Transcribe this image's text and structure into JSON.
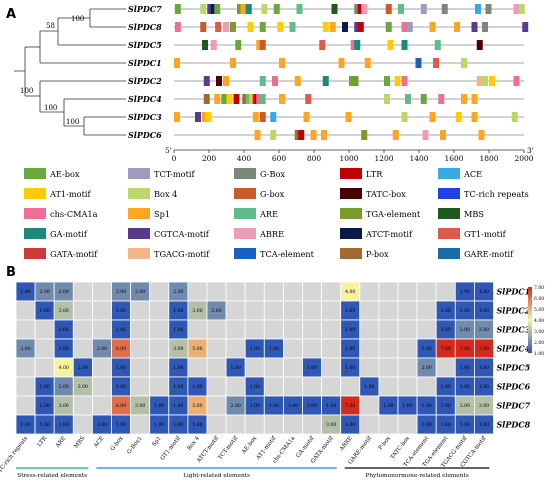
{
  "panel_a": {
    "label": "A",
    "genes": [
      "SlPDC7",
      "SlPDC8",
      "SlPDC5",
      "SlPDC1",
      "SlPDC2",
      "SlPDC4",
      "SlPDC3",
      "SlPDC6"
    ],
    "bootstrap": [
      "58",
      "100",
      "100",
      "100",
      "100"
    ],
    "axis_ticks": [
      "0",
      "200",
      "400",
      "600",
      "800",
      "1000",
      "1200",
      "1400",
      "1600",
      "1800",
      "2000"
    ],
    "axis_5": "5'",
    "axis_3": "3'",
    "tracks": [
      [
        [
          5,
          "c0"
        ],
        [
          150,
          "c6"
        ],
        [
          190,
          "c16"
        ],
        [
          210,
          "c18"
        ],
        [
          230,
          "c0"
        ],
        [
          360,
          "c13"
        ],
        [
          380,
          "c11"
        ],
        [
          410,
          "c15"
        ],
        [
          500,
          "c6"
        ],
        [
          570,
          "c0"
        ],
        [
          700,
          "c12"
        ],
        [
          900,
          "c14"
        ],
        [
          1030,
          "c2"
        ],
        [
          1050,
          "c3"
        ],
        [
          1070,
          "c17"
        ],
        [
          1210,
          "c7"
        ],
        [
          1280,
          "c12"
        ],
        [
          1410,
          "c1"
        ],
        [
          1530,
          "c2"
        ],
        [
          1720,
          "c4"
        ],
        [
          1780,
          "c2"
        ],
        [
          1940,
          "c17"
        ],
        [
          1970,
          "c6"
        ]
      ],
      [
        [
          5,
          "c10"
        ],
        [
          150,
          "c7"
        ],
        [
          235,
          "c19"
        ],
        [
          280,
          "c17"
        ],
        [
          320,
          "c13"
        ],
        [
          420,
          "c5"
        ],
        [
          490,
          "c0"
        ],
        [
          590,
          "c5"
        ],
        [
          660,
          "c12"
        ],
        [
          850,
          "c5"
        ],
        [
          890,
          "c11"
        ],
        [
          960,
          "c18"
        ],
        [
          1030,
          "c16"
        ],
        [
          1050,
          "c3"
        ],
        [
          1210,
          "c0"
        ],
        [
          1300,
          "c10"
        ],
        [
          1330,
          "c1"
        ],
        [
          1460,
          "c11"
        ],
        [
          1600,
          "c11"
        ],
        [
          1700,
          "c16"
        ],
        [
          1760,
          "c2"
        ],
        [
          1990,
          "c16"
        ]
      ],
      [
        [
          160,
          "c14"
        ],
        [
          210,
          "c17"
        ],
        [
          350,
          "c0"
        ],
        [
          470,
          "c11"
        ],
        [
          490,
          "c7"
        ],
        [
          830,
          "c19"
        ],
        [
          1010,
          "c10"
        ],
        [
          1030,
          "c15"
        ],
        [
          1220,
          "c5"
        ],
        [
          1300,
          "c15"
        ],
        [
          1490,
          "c12"
        ],
        [
          1730,
          "c8"
        ]
      ],
      [
        [
          0,
          "c11"
        ],
        [
          320,
          "c11"
        ],
        [
          600,
          "c11"
        ],
        [
          940,
          "c11"
        ],
        [
          1090,
          "c11"
        ],
        [
          1380,
          "c22"
        ],
        [
          1480,
          "c19"
        ],
        [
          1640,
          "c6"
        ]
      ],
      [
        [
          170,
          "c16"
        ],
        [
          240,
          "c8"
        ],
        [
          280,
          "c11"
        ],
        [
          490,
          "c12"
        ],
        [
          560,
          "c10"
        ],
        [
          690,
          "c11"
        ],
        [
          850,
          "c15"
        ],
        [
          1000,
          "c0"
        ],
        [
          1020,
          "c13"
        ],
        [
          1200,
          "c0"
        ],
        [
          1260,
          "c5"
        ],
        [
          1300,
          "c10"
        ],
        [
          1730,
          "c21"
        ],
        [
          1760,
          "c6"
        ],
        [
          1800,
          "c5"
        ],
        [
          1940,
          "c10"
        ]
      ],
      [
        [
          170,
          "c23"
        ],
        [
          230,
          "c11"
        ],
        [
          270,
          "c0"
        ],
        [
          300,
          "c5"
        ],
        [
          340,
          "c3"
        ],
        [
          390,
          "c23"
        ],
        [
          410,
          "c12"
        ],
        [
          430,
          "c5"
        ],
        [
          450,
          "c3"
        ],
        [
          470,
          "c10"
        ],
        [
          490,
          "c12"
        ],
        [
          600,
          "c11"
        ],
        [
          750,
          "c19"
        ],
        [
          1200,
          "c6"
        ],
        [
          1320,
          "c12"
        ],
        [
          1410,
          "c0"
        ],
        [
          1510,
          "c10"
        ],
        [
          1640,
          "c11"
        ],
        [
          1700,
          "c11"
        ]
      ],
      [
        [
          0,
          "c11"
        ],
        [
          120,
          "c16"
        ],
        [
          160,
          "c11"
        ],
        [
          180,
          "c5"
        ],
        [
          450,
          "c11"
        ],
        [
          490,
          "c7"
        ],
        [
          550,
          "c4"
        ],
        [
          740,
          "c11"
        ],
        [
          980,
          "c11"
        ],
        [
          1300,
          "c6"
        ],
        [
          1460,
          "c11"
        ],
        [
          1610,
          "c5"
        ],
        [
          1700,
          "c11"
        ],
        [
          1930,
          "c6"
        ]
      ],
      [
        [
          460,
          "c11"
        ],
        [
          550,
          "c6"
        ],
        [
          690,
          "c23"
        ],
        [
          710,
          "c3"
        ],
        [
          780,
          "c11"
        ],
        [
          840,
          "c11"
        ],
        [
          1070,
          "c13"
        ],
        [
          1250,
          "c11"
        ],
        [
          1420,
          "c17"
        ],
        [
          1520,
          "c11"
        ],
        [
          1740,
          "c11"
        ]
      ]
    ],
    "legend": [
      [
        "c0",
        "AE-box"
      ],
      [
        "c1",
        "TCT-motif"
      ],
      [
        "c2",
        "G-Box"
      ],
      [
        "c3",
        "LTR"
      ],
      [
        "c4",
        "ACE"
      ],
      [
        "c5",
        "AT1-motif"
      ],
      [
        "c6",
        "Box 4"
      ],
      [
        "c7",
        "G-box"
      ],
      [
        "c8",
        "TATC-box"
      ],
      [
        "c9",
        "TC-rich repeats"
      ],
      [
        "c10",
        "chs-CMA1a"
      ],
      [
        "c11",
        "Sp1"
      ],
      [
        "c12",
        "ARE"
      ],
      [
        "c13",
        "TGA-element"
      ],
      [
        "c14",
        "MBS"
      ],
      [
        "c15",
        "GA-motif"
      ],
      [
        "c16",
        "CGTCA-motif"
      ],
      [
        "c17",
        "ABRE"
      ],
      [
        "c18",
        "ATCT-motif"
      ],
      [
        "c19",
        "GT1-motif"
      ],
      [
        "c20",
        "GATA-motif"
      ],
      [
        "c21",
        "TGACG-motif"
      ],
      [
        "c22",
        "TCA-element"
      ],
      [
        "c23",
        "P-box"
      ],
      [
        "c24",
        "GARE-motif"
      ]
    ]
  },
  "panel_b": {
    "label": "B",
    "colorbar": [
      "7.00",
      "6.00",
      "5.00",
      "4.00",
      "3.00",
      "2.00",
      "1.00"
    ],
    "groups": [
      "Stress-related elements",
      "Light-related elements",
      "Phytomonormone-related elements"
    ],
    "chart_data": {
      "type": "heatmap",
      "x": [
        "TC-rich repeats",
        "LTR",
        "ARE",
        "MBS",
        "ACE",
        "G-box",
        "G-Box1",
        "Sp1",
        "GT1-motif",
        "Box 4",
        "ATCT-motif",
        "TCT-motif",
        "AE-box",
        "AT1-motif",
        "chs-CMA1a",
        "GA-motif",
        "GATA-motif",
        "ABRE",
        "GARE-motif",
        "P-box",
        "TATC-box",
        "TCA-element",
        "TGA-element",
        "TGACG-motif",
        "CGTCA-motif"
      ],
      "y": [
        "SlPDC1",
        "SlPDC2",
        "SlPDC3",
        "SlPDC4",
        "SlPDC5",
        "SlPDC6",
        "SlPDC7",
        "SlPDC8"
      ],
      "values": [
        [
          1,
          2,
          2,
          0,
          0,
          2,
          2,
          0,
          2,
          0,
          0,
          0,
          0,
          0,
          0,
          0,
          0,
          4,
          0,
          0,
          0,
          0,
          0,
          1,
          1
        ],
        [
          0,
          1,
          3,
          0,
          0,
          1,
          0,
          0,
          1,
          3,
          2,
          0,
          0,
          0,
          0,
          0,
          0,
          1,
          0,
          0,
          0,
          0,
          1,
          1,
          1
        ],
        [
          0,
          0,
          1,
          0,
          0,
          1,
          0,
          0,
          1,
          0,
          0,
          0,
          0,
          0,
          0,
          0,
          0,
          1,
          0,
          0,
          0,
          0,
          1,
          2,
          2
        ],
        [
          2,
          0,
          1,
          0,
          2,
          6,
          0,
          0,
          3,
          5,
          0,
          0,
          1,
          1,
          0,
          0,
          0,
          1,
          0,
          0,
          0,
          1,
          7,
          7,
          7
        ],
        [
          0,
          0,
          4,
          1,
          0,
          1,
          0,
          0,
          1,
          0,
          0,
          1,
          0,
          0,
          0,
          1,
          0,
          1,
          0,
          0,
          0,
          2,
          0,
          1,
          1
        ],
        [
          0,
          1,
          2,
          3,
          0,
          1,
          0,
          0,
          1,
          1,
          0,
          0,
          1,
          0,
          0,
          0,
          0,
          0,
          1,
          0,
          0,
          0,
          1,
          1,
          1
        ],
        [
          0,
          1,
          3,
          0,
          0,
          6,
          3,
          1,
          1,
          5,
          0,
          2,
          1,
          1,
          1,
          1,
          1,
          7,
          0,
          1,
          1,
          1,
          1,
          3,
          3
        ],
        [
          1,
          1,
          1,
          0,
          1,
          1,
          0,
          1,
          1,
          1,
          0,
          0,
          0,
          0,
          0,
          0,
          3,
          1,
          0,
          0,
          0,
          1,
          1,
          1,
          1
        ]
      ],
      "value_labels": [
        "",
        "1.00",
        "2.00",
        "3.00",
        "4.00",
        "5.00",
        "6.00",
        "7.00"
      ],
      "range": [
        1,
        7
      ]
    }
  },
  "colors": {
    "c0": "#6aa83c",
    "c1": "#9c9cc0",
    "c2": "#7a8878",
    "c3": "#c00000",
    "c4": "#3aa9e8",
    "c5": "#ffcc00",
    "c6": "#b8d86c",
    "c7": "#cc5a28",
    "c8": "#4a0000",
    "c9": "#2040e8",
    "c10": "#ef6f93",
    "c11": "#ffa520",
    "c12": "#5ebd8a",
    "c13": "#7a9b2a",
    "c14": "#1e5a1e",
    "c15": "#1a8a7a",
    "c16": "#5a3a8a",
    "c17": "#ee9ab8",
    "c18": "#0a1a4a",
    "c19": "#e05a4a",
    "c20": "#cc3a3a",
    "c21": "#f4b488",
    "c22": "#1a60c0",
    "c23": "#a06a30",
    "c24": "#1a6ea8",
    "cmap_low": "#2f57b5",
    "cmap_mid": "#f5f3a0",
    "cmap_high": "#d42a1e",
    "empty": "#d6d6d6",
    "grp_stress": "#2ecc71",
    "grp_light": "#3aa0e0",
    "grp_hormone": "#333333"
  }
}
